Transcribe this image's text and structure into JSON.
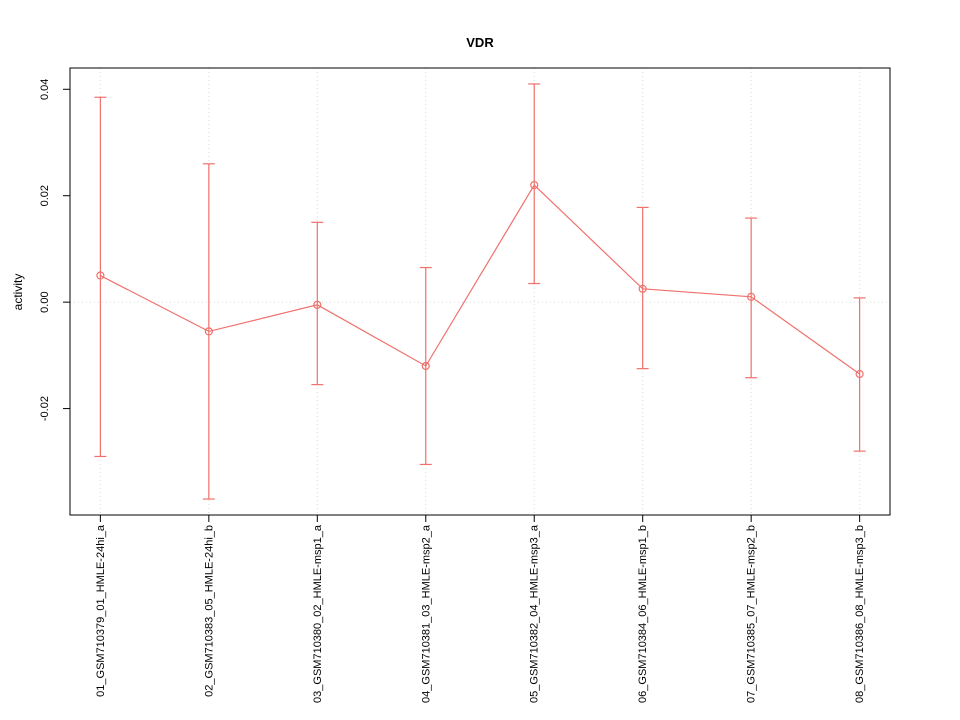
{
  "chart_data": {
    "type": "line",
    "title": "VDR",
    "xlabel": "",
    "ylabel": "activity",
    "categories": [
      "01_GSM710379_01_HMLE-24hi_a",
      "02_GSM710383_05_HMLE-24hi_b",
      "03_GSM710380_02_HMLE-msp1_a",
      "04_GSM710381_03_HMLE-msp2_a",
      "05_GSM710382_04_HMLE-msp3_a",
      "06_GSM710384_06_HMLE-msp1_b",
      "07_GSM710385_07_HMLE-msp2_b",
      "08_GSM710386_08_HMLE-msp3_b"
    ],
    "series": [
      {
        "name": "activity",
        "values": [
          0.005,
          -0.0055,
          -0.0005,
          -0.012,
          0.022,
          0.0025,
          0.001,
          -0.0135
        ],
        "error_low": [
          -0.029,
          -0.037,
          -0.0155,
          -0.0305,
          0.0035,
          -0.0125,
          -0.0142,
          -0.028
        ],
        "error_high": [
          0.0385,
          0.026,
          0.015,
          0.0065,
          0.041,
          0.0178,
          0.0158,
          0.0008
        ]
      }
    ],
    "ylim": [
      -0.04,
      0.044
    ],
    "yticks": [
      -0.02,
      0,
      0.02,
      0.04
    ],
    "ytick_labels": [
      "-0.02",
      "0.00",
      "0.02",
      "0.04"
    ],
    "grid": {
      "vertical_dotted": true,
      "zero_line_dotted": true,
      "legend": "none"
    },
    "colors": {
      "series": "#f0716c",
      "grid": "#d9d9d9",
      "axis": "#000000",
      "background": "#ffffff"
    }
  }
}
